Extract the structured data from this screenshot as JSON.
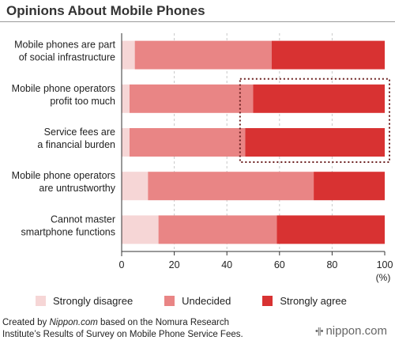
{
  "page": {
    "title": "Opinions About Mobile Phones",
    "footer": {
      "prefix": "Created by ",
      "source_name": "Nippon.com",
      "suffix_line1": " based on the Nomura Research",
      "line2": "Institute’s Results of Survey on Mobile Phone Service Fees."
    },
    "logo": {
      "mark": "•||•",
      "text": "nippon.com"
    }
  },
  "chart_data": {
    "type": "bar",
    "orientation": "horizontal",
    "stacked": true,
    "title": "Opinions About Mobile Phones",
    "categories": [
      [
        "Mobile phones are part",
        "of social infrastructure"
      ],
      [
        "Mobile phone operators",
        "profit too much"
      ],
      [
        "Service fees are",
        "a financial burden"
      ],
      [
        "Mobile phone operators",
        "are untrustworthy"
      ],
      [
        "Cannot master",
        "smartphone functions"
      ]
    ],
    "series": [
      {
        "name": "Strongly disagree",
        "color": "#f6d6d6",
        "values": [
          5,
          3,
          3,
          10,
          14
        ]
      },
      {
        "name": "Undecided",
        "color": "#e98585",
        "values": [
          52,
          47,
          44,
          63,
          45
        ]
      },
      {
        "name": "Strongly agree",
        "color": "#d83232",
        "values": [
          43,
          50,
          53,
          27,
          41
        ]
      }
    ],
    "xlim": [
      0,
      100
    ],
    "xticks": [
      0,
      20,
      40,
      60,
      80,
      100
    ],
    "xunit": "(%)",
    "grid": "vertical dashed",
    "legend": "bottom",
    "highlight": {
      "categories": [
        1,
        2
      ],
      "from_value": 45,
      "style": "dotted box"
    }
  }
}
